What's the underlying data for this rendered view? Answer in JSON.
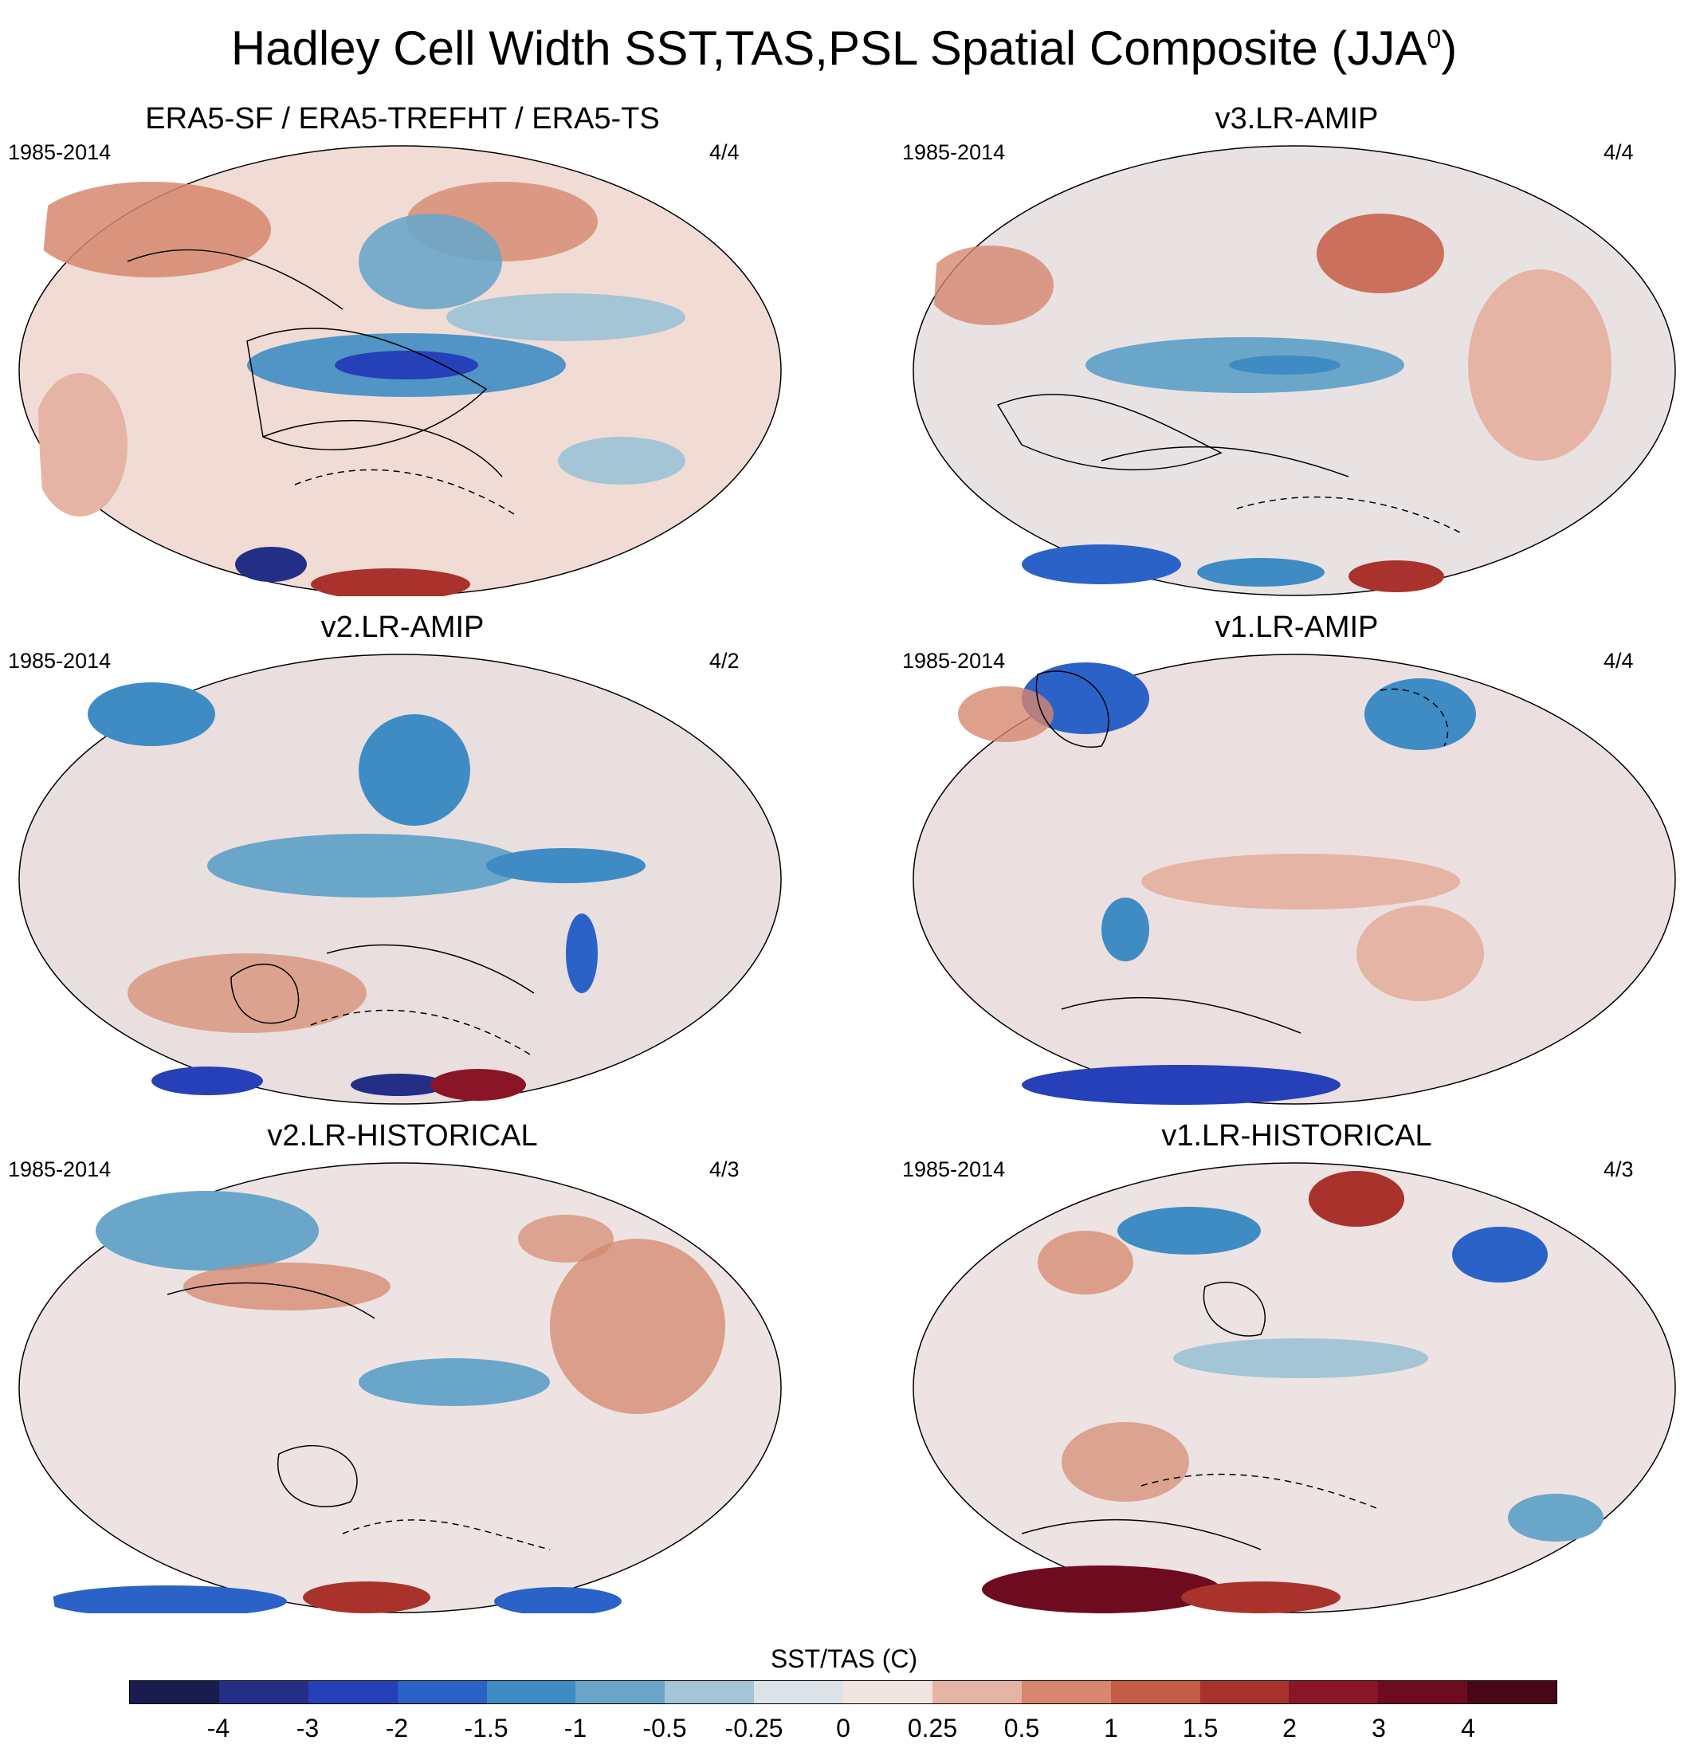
{
  "title_main": "Hadley Cell Width SST,TAS,PSL Spatial Composite (JJA",
  "title_sup": "0",
  "title_close": ")",
  "panels": [
    {
      "title": "ERA5-SF / ERA5-TREFHT / ERA5-TS",
      "period": "1985-2014",
      "count": "4/4"
    },
    {
      "title": "v3.LR-AMIP",
      "period": "1985-2014",
      "count": "4/4"
    },
    {
      "title": "v2.LR-AMIP",
      "period": "1985-2014",
      "count": "4/2"
    },
    {
      "title": "v1.LR-AMIP",
      "period": "1985-2014",
      "count": "4/4"
    },
    {
      "title": "v2.LR-HISTORICAL",
      "period": "1985-2014",
      "count": "4/3"
    },
    {
      "title": "v1.LR-HISTORICAL",
      "period": "1985-2014",
      "count": "4/3"
    }
  ],
  "colorbar": {
    "label": "SST/TAS (C)",
    "ticks": [
      "-4",
      "-3",
      "-2",
      "-1.5",
      "-1",
      "-0.5",
      "-0.25",
      "0",
      "0.25",
      "0.5",
      "1",
      "1.5",
      "2",
      "3",
      "4"
    ],
    "colors": [
      "#191c4f",
      "#232f86",
      "#2540b8",
      "#2a62c8",
      "#3f8cc4",
      "#6aa6c9",
      "#a3c5d6",
      "#dbe3e8",
      "#f2e4e0",
      "#e6b4a5",
      "#d6876e",
      "#c55c45",
      "#a9322c",
      "#8a1526",
      "#6e0b1f",
      "#4a0517"
    ]
  }
}
